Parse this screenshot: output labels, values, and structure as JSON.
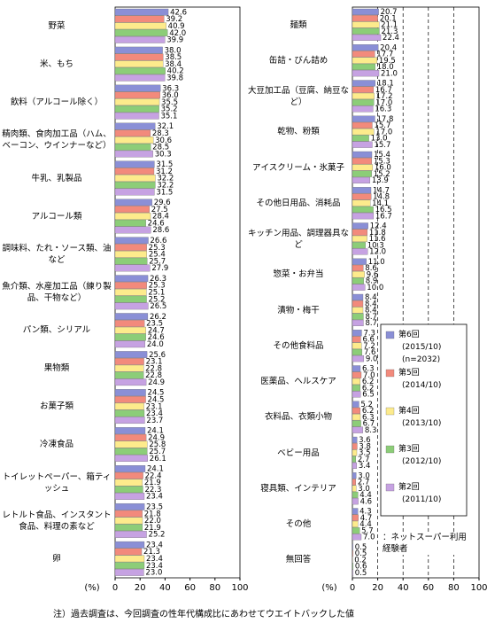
{
  "chart_data": [
    {
      "type": "bar",
      "orientation": "horizontal",
      "xlabel": "(%)",
      "xlim": [
        0,
        100
      ],
      "xticks": [
        0,
        20,
        40,
        60,
        80,
        100
      ],
      "grid": false,
      "categories": [
        "野菜",
        "米、もち",
        "飲料（アルコール除く）",
        "精肉類、食肉加工品（ハム、ベーコン、ウインナーなど）",
        "牛乳、乳製品",
        "アルコール類",
        "調味料、たれ・ソース類、油など",
        "魚介類、水産加工品（練り製品、干物など）",
        "パン類、シリアル",
        "果物類",
        "お菓子類",
        "冷凍食品",
        "トイレットペーパー、箱ティッシュ",
        "レトルト食品、インスタント食品、料理の素など",
        "卵"
      ],
      "series": [
        {
          "color": "#8a8fd6",
          "values": [
            42.6,
            38.0,
            36.3,
            32.1,
            31.5,
            29.6,
            26.6,
            26.3,
            26.2,
            25.6,
            24.5,
            24.1,
            24.1,
            23.5,
            23.4
          ],
          "value_labels": [
            "42.6",
            "38.0",
            "36.3",
            "32.1",
            "31.5",
            "29.6",
            "26.6",
            "26.3",
            "26.2",
            "25.6",
            "24.5",
            "24.1",
            "24.1",
            "23.5",
            "23.4"
          ]
        },
        {
          "color": "#f28a7c",
          "values": [
            39.2,
            38.5,
            36.0,
            28.3,
            31.2,
            27.5,
            25.3,
            25.3,
            23.5,
            23.1,
            24.5,
            24.9,
            22.4,
            21.8,
            21.3
          ],
          "value_labels": [
            "39.2",
            "38.5",
            "36.0",
            "28.3",
            "31.2",
            "27.5",
            "25.3",
            "25.3",
            "23.5",
            "23.1",
            "24.5",
            "24.9",
            "22.4",
            "21.8",
            "21.3"
          ]
        },
        {
          "color": "#fdeb8c",
          "values": [
            40.9,
            38.4,
            35.5,
            30.6,
            32.2,
            28.4,
            25.4,
            25.1,
            24.7,
            22.8,
            23.1,
            25.8,
            21.9,
            22.0,
            23.4
          ],
          "value_labels": [
            "40.9",
            "38.4",
            "35.5",
            "30.6",
            "32.2",
            "28.4",
            "25.4",
            "25.1",
            "24.7",
            "22.8",
            "23.1",
            "25.8",
            "21.9",
            "22.0",
            "23.4"
          ]
        },
        {
          "color": "#8ccd78",
          "values": [
            42.0,
            40.2,
            35.2,
            28.5,
            32.2,
            24.6,
            25.7,
            25.2,
            24.6,
            22.8,
            23.4,
            25.7,
            22.3,
            21.9,
            23.4
          ],
          "value_labels": [
            "42.0",
            "40.2",
            "35.2",
            "28.5",
            "32.2",
            "24.6",
            "25.7",
            "25.2",
            "24.6",
            "22.8",
            "23.4",
            "25.7",
            "22.3",
            "21.9",
            "23.4"
          ]
        },
        {
          "color": "#c6a2e2",
          "values": [
            39.9,
            39.8,
            35.1,
            30.3,
            31.5,
            28.6,
            27.9,
            26.5,
            24.0,
            24.9,
            23.7,
            26.1,
            23.4,
            25.2,
            23.0
          ],
          "value_labels": [
            "39.9",
            "39.8",
            "35.1",
            "30.3",
            "31.5",
            "28.6",
            "27.9",
            "26.5",
            "24.0",
            "24.9",
            "23.7",
            "26.1",
            "23.4",
            "25.2",
            "23.0"
          ]
        }
      ]
    },
    {
      "type": "bar",
      "orientation": "horizontal",
      "xlabel": "(%)",
      "xlim": [
        0,
        100
      ],
      "xticks": [
        0,
        20,
        40,
        60,
        80,
        100
      ],
      "grid": true,
      "annotation": "：ネットスーパー利用経験者",
      "categories": [
        "麺類",
        "缶詰・びん詰め",
        "大豆加工品（豆腐、納豆など）",
        "乾物、粉類",
        "アイスクリーム・氷菓子",
        "その他日用品、消耗品",
        "キッチン用品、調理器具など",
        "惣菜・お弁当",
        "漬物・梅干",
        "その他食料品",
        "医薬品、ヘルスケア",
        "衣料品、衣類小物",
        "ベビー用品",
        "寝具類、インテリア",
        "その他",
        "無回答"
      ],
      "series": [
        {
          "name": "第6回",
          "period": "(2015/10)",
          "n": "(n=2032)",
          "color": "#8a8fd6",
          "values": [
            20.7,
            20.4,
            18.1,
            17.8,
            15.4,
            14.7,
            12.4,
            11.0,
            8.4,
            7.3,
            6.3,
            5.2,
            3.6,
            3.0,
            4.3,
            0.5
          ],
          "value_labels": [
            "20.7",
            "20.4",
            "18.1",
            "17.8",
            "15.4",
            "14.7",
            "12.4",
            "11.0",
            "8.4",
            "7.3",
            "6.3",
            "5.2",
            "3.6",
            "3.0",
            "4.3",
            "0.5"
          ]
        },
        {
          "name": "第5回",
          "period": "(2014/10)",
          "color": "#f28a7c",
          "values": [
            20.1,
            17.7,
            16.7,
            15.7,
            15.3,
            14.8,
            11.8,
            8.6,
            8.4,
            6.6,
            7.0,
            6.2,
            3.8,
            2.7,
            4.7,
            0.5
          ],
          "value_labels": [
            "20.1",
            "17.7",
            "16.7",
            "15.7",
            "15.3",
            "14.8",
            "11.8",
            "8.6",
            "8.4",
            "6.6",
            "7.0",
            "6.2",
            "3.8",
            "2.7",
            "4.7",
            "0.5"
          ]
        },
        {
          "name": "第4回",
          "period": "(2013/10)",
          "color": "#fdeb8c",
          "values": [
            21.1,
            19.5,
            17.2,
            17.0,
            16.0,
            14.1,
            11.6,
            9.6,
            8.4,
            7.2,
            6.2,
            6.3,
            3.5,
            3.0,
            4.4,
            0.2
          ],
          "value_labels": [
            "21.1",
            "19.5",
            "17.2",
            "17.0",
            "16.0",
            "14.1",
            "11.6",
            "9.6",
            "8.4",
            "7.2",
            "6.2",
            "6.3",
            "3.5",
            "3.0",
            "4.4",
            "0.2"
          ]
        },
        {
          "name": "第3回",
          "period": "(2012/10)",
          "color": "#8ccd78",
          "values": [
            21.3,
            18.0,
            17.0,
            13.0,
            15.2,
            16.5,
            10.3,
            8.9,
            8.7,
            7.6,
            6.2,
            6.7,
            2.7,
            4.4,
            5.7,
            0.6
          ],
          "value_labels": [
            "21.3",
            "18.0",
            "17.0",
            "13.0",
            "15.2",
            "16.5",
            "10.3",
            "8.9",
            "8.7",
            "7.6",
            "6.2",
            "6.7",
            "2.7",
            "4.4",
            "5.7",
            "0.6"
          ]
        },
        {
          "name": "第2回",
          "period": "(2011/10)",
          "color": "#c6a2e2",
          "values": [
            22.4,
            21.0,
            16.3,
            15.7,
            13.9,
            16.7,
            12.0,
            10.0,
            8.7,
            9.0,
            6.5,
            8.3,
            3.4,
            4.6,
            7.0,
            0.5
          ],
          "value_labels": [
            "22.4",
            "21.0",
            "16.3",
            "15.7",
            "13.9",
            "16.7",
            "12.0",
            "10.0",
            "8.7",
            "9.0",
            "6.5",
            "8.3",
            "3.4",
            "4.6",
            "7.0",
            "0.5"
          ]
        }
      ]
    }
  ],
  "footnote": "注）過去調査は、今回調査の性年代構成比にあわせてウエイトバックした値"
}
